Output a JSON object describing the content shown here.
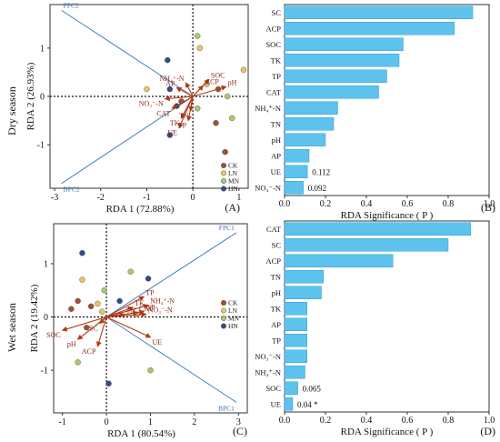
{
  "season_labels": {
    "dry": "Dry season",
    "wet": "Wet season"
  },
  "panel_letters": [
    "(A)",
    "(B)",
    "(C)",
    "(D)"
  ],
  "colors": {
    "arrow": "#b03a16",
    "bar": "#5ec2ee",
    "bar_edge": "#3a9fd0",
    "fpc_line": "#4a7fc0",
    "groups": {
      "CK": "#a0522d",
      "LN": "#e9c46a",
      "MN": "#a9c96d",
      "HN": "#2f4d8a"
    }
  },
  "chart_data": [
    {
      "id": "A",
      "type": "scatter",
      "xlabel": "RDA 1 (72.88%)",
      "ylabel": "RDA 2 (26.93%)",
      "xlim": [
        -3.1,
        1.2
      ],
      "ylim": [
        -1.9,
        1.9
      ],
      "xticks": [
        -3,
        -2,
        -1,
        0,
        1
      ],
      "yticks": [
        -1,
        0,
        1
      ],
      "legend": [
        "CK",
        "LN",
        "MN",
        "HN"
      ],
      "legend_position": "bottom-right",
      "fpc_lines": [
        {
          "label": "FPC2",
          "x": -2.85,
          "y": 1.78
        },
        {
          "label": "BPC2",
          "x": -2.85,
          "y": -1.8
        }
      ],
      "arrows": [
        {
          "label": "SOC",
          "x": 0.35,
          "y": 0.35
        },
        {
          "label": "pH",
          "x": 0.72,
          "y": 0.2
        },
        {
          "label": "ACP",
          "x": 0.22,
          "y": 0.22
        },
        {
          "label": "NH₄⁺-N",
          "x": -0.15,
          "y": 0.28
        },
        {
          "label": "AP",
          "x": -0.35,
          "y": 0.18
        },
        {
          "label": "NO₃⁻-N",
          "x": -0.6,
          "y": -0.05
        },
        {
          "label": "TK",
          "x": -0.25,
          "y": -0.45
        },
        {
          "label": "CAT",
          "x": -0.45,
          "y": -0.25
        },
        {
          "label": "TN",
          "x": -0.05,
          "y": -0.3
        },
        {
          "label": "UE",
          "x": -0.3,
          "y": -0.65
        },
        {
          "label": "TP",
          "x": -0.1,
          "y": -0.5
        }
      ],
      "points": [
        {
          "g": "CK",
          "x": 0.55,
          "y": 0.15
        },
        {
          "g": "CK",
          "x": 0.5,
          "y": -0.55
        },
        {
          "g": "CK",
          "x": 0.7,
          "y": -1.15
        },
        {
          "g": "CK",
          "x": -0.25,
          "y": -0.1
        },
        {
          "g": "LN",
          "x": 0.15,
          "y": 1.0
        },
        {
          "g": "LN",
          "x": 1.1,
          "y": 0.55
        },
        {
          "g": "LN",
          "x": 0.3,
          "y": 0.25
        },
        {
          "g": "LN",
          "x": -1.0,
          "y": 0.15
        },
        {
          "g": "MN",
          "x": 0.1,
          "y": 1.25
        },
        {
          "g": "MN",
          "x": 0.75,
          "y": 0.0
        },
        {
          "g": "MN",
          "x": 0.85,
          "y": -0.45
        },
        {
          "g": "MN",
          "x": 0.1,
          "y": -0.25
        },
        {
          "g": "HN",
          "x": -0.55,
          "y": 0.75
        },
        {
          "g": "HN",
          "x": -0.5,
          "y": -0.8
        },
        {
          "g": "HN",
          "x": -0.35,
          "y": -0.2
        },
        {
          "g": "HN",
          "x": -0.5,
          "y": 0.15
        }
      ]
    },
    {
      "id": "B",
      "type": "bar",
      "xlabel": "RDA Significance ( P )",
      "xlim": [
        0,
        1.0
      ],
      "xticks": [
        0,
        0.2,
        0.4,
        0.6,
        0.8,
        1.0
      ],
      "categories": [
        "SC",
        "ACP",
        "SOC",
        "TK",
        "TP",
        "CAT",
        "NH₄⁺-N",
        "TN",
        "pH",
        "AP",
        "UE",
        "NO₃⁻-N"
      ],
      "values": [
        0.92,
        0.83,
        0.58,
        0.56,
        0.5,
        0.46,
        0.26,
        0.24,
        0.2,
        0.12,
        0.112,
        0.092
      ],
      "value_labels": {
        "UE": "0.112",
        "NO₃⁻-N": "0.092"
      }
    },
    {
      "id": "C",
      "type": "scatter",
      "xlabel": "RDA 1 (80.54%)",
      "ylabel": "RDA  2  (19.42%)",
      "xlim": [
        -1.2,
        3.2
      ],
      "ylim": [
        -1.8,
        1.75
      ],
      "xticks": [
        -1,
        0,
        1,
        2,
        3
      ],
      "yticks": [
        -1,
        0,
        1
      ],
      "legend": [
        "CK",
        "LN",
        "MN",
        "HN"
      ],
      "legend_position": "middle-right",
      "fpc_lines": [
        {
          "label": "FPC1",
          "x": 2.95,
          "y": 1.58
        },
        {
          "label": "BPC1",
          "x": 2.95,
          "y": -1.6
        }
      ],
      "arrows": [
        {
          "label": "TP",
          "x": 0.85,
          "y": 0.38
        },
        {
          "label": "NH₄⁺-N",
          "x": 0.95,
          "y": 0.22
        },
        {
          "label": "TK",
          "x": 0.6,
          "y": 0.18
        },
        {
          "label": "NO₃⁻-N",
          "x": 0.9,
          "y": 0.05
        },
        {
          "label": "CAT",
          "x": 0.7,
          "y": 0.08
        },
        {
          "label": "AP",
          "x": 0.85,
          "y": 0.1
        },
        {
          "label": "TN",
          "x": 0.4,
          "y": 0.05
        },
        {
          "label": "SC",
          "x": -0.15,
          "y": -0.12
        },
        {
          "label": "UE",
          "x": 1.0,
          "y": -0.38
        },
        {
          "label": "SOC",
          "x": -1.0,
          "y": -0.25
        },
        {
          "label": "pH",
          "x": -0.65,
          "y": -0.42
        },
        {
          "label": "ACP",
          "x": -0.2,
          "y": -0.55
        }
      ],
      "points": [
        {
          "g": "CK",
          "x": -0.8,
          "y": 0.15
        },
        {
          "g": "CK",
          "x": -0.35,
          "y": 0.2
        },
        {
          "g": "CK",
          "x": -0.65,
          "y": 0.3
        },
        {
          "g": "CK",
          "x": -0.45,
          "y": -0.2
        },
        {
          "g": "LN",
          "x": -0.55,
          "y": 0.7
        },
        {
          "g": "LN",
          "x": -0.2,
          "y": 0.25
        },
        {
          "g": "LN",
          "x": 0.7,
          "y": 0.05
        },
        {
          "g": "LN",
          "x": -0.1,
          "y": 0.1
        },
        {
          "g": "MN",
          "x": 0.55,
          "y": 0.85
        },
        {
          "g": "MN",
          "x": -0.65,
          "y": -0.85
        },
        {
          "g": "MN",
          "x": 1.0,
          "y": -1.0
        },
        {
          "g": "MN",
          "x": -0.05,
          "y": 0.5
        },
        {
          "g": "HN",
          "x": -0.55,
          "y": 1.2
        },
        {
          "g": "HN",
          "x": 0.95,
          "y": 0.72
        },
        {
          "g": "HN",
          "x": 0.05,
          "y": -1.25
        },
        {
          "g": "HN",
          "x": 0.3,
          "y": 0.3
        }
      ]
    },
    {
      "id": "D",
      "type": "bar",
      "xlabel": "RDA Significance ( P )",
      "xlim": [
        0,
        1.0
      ],
      "xticks": [
        0,
        0.2,
        0.4,
        0.6,
        0.8,
        1.0
      ],
      "categories": [
        "CAT",
        "SC",
        "ACP",
        "TN",
        "pH",
        "TK",
        "AP",
        "TP",
        "NO₃⁻-N",
        "NH₄⁺-N",
        "SOC",
        "UE"
      ],
      "values": [
        0.91,
        0.8,
        0.53,
        0.19,
        0.18,
        0.11,
        0.11,
        0.11,
        0.11,
        0.1,
        0.065,
        0.04
      ],
      "value_labels": {
        "SOC": "0.065",
        "UE": "0.04 *"
      }
    }
  ]
}
